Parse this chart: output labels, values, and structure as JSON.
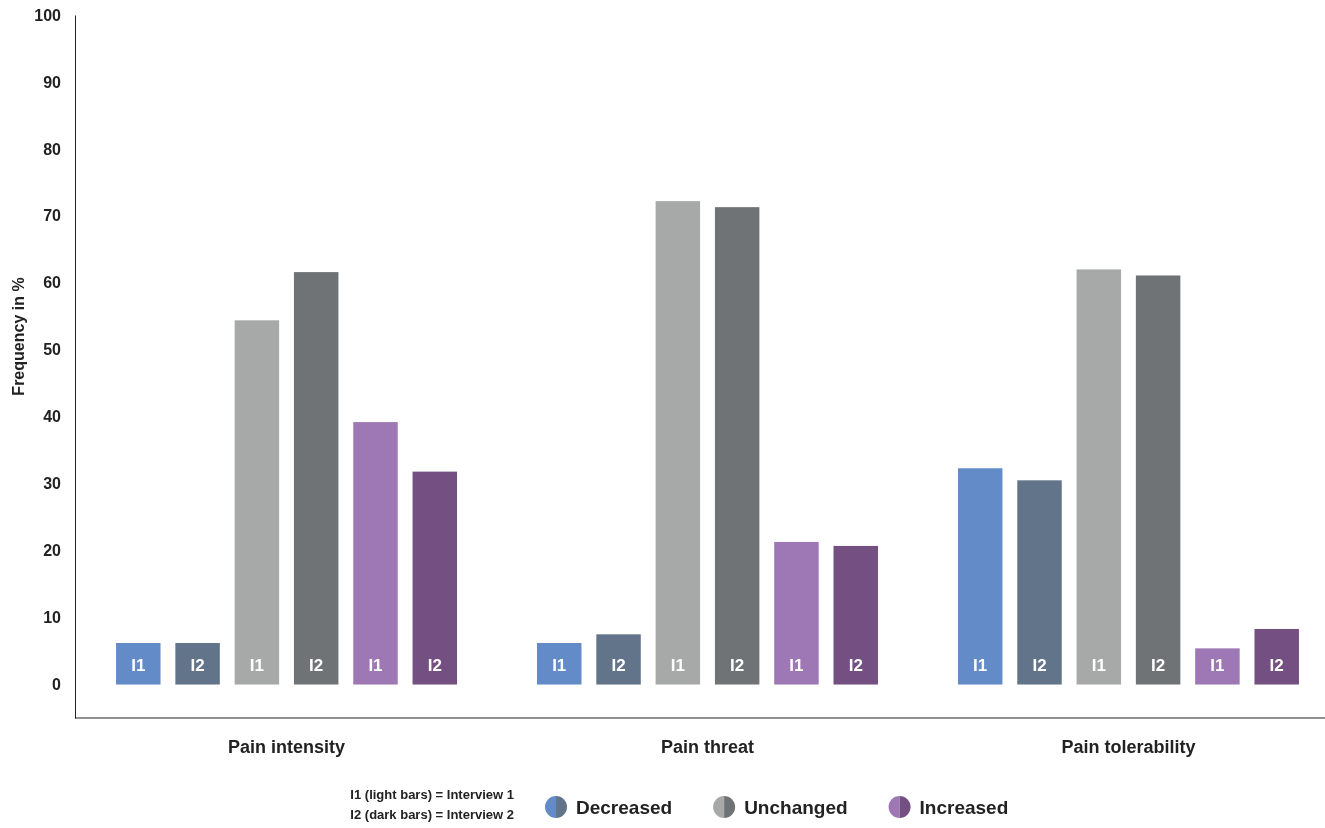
{
  "chart_data": {
    "type": "bar",
    "ylabel": "Frequency in %",
    "categories": [
      "Pain intensity",
      "Pain threat",
      "Pain tolerability"
    ],
    "series": [
      {
        "name": "Decreased",
        "color": "#628bc8",
        "values": [
          6.2,
          6.2,
          32.3
        ],
        "value_labels": [
          "I1",
          "I1",
          "I1"
        ]
      },
      {
        "color": "#627489",
        "values": [
          6.2,
          7.5,
          30.5
        ],
        "value_labels": [
          "I2",
          "I2",
          "I2"
        ]
      },
      {
        "name": "Unchanged",
        "color": "#a7a8a8",
        "values": [
          54.4,
          72.2,
          62.0
        ],
        "value_labels": [
          "I1",
          "I1",
          "I1"
        ]
      },
      {
        "color": "#707376",
        "values": [
          61.6,
          71.3,
          61.1
        ],
        "value_labels": [
          "I2",
          "I2",
          "I2"
        ]
      },
      {
        "name": "Increased",
        "color": "#9d78b4",
        "values": [
          39.2,
          21.3,
          5.4
        ],
        "value_labels": [
          "I1",
          "I1",
          "I1"
        ]
      },
      {
        "color": "#744f82",
        "values": [
          31.8,
          20.7,
          8.3
        ],
        "value_labels": [
          "I2",
          "I2",
          "I2"
        ]
      }
    ],
    "ylim": [
      -5,
      100
    ],
    "yticks": [
      0,
      10,
      20,
      30,
      40,
      50,
      60,
      70,
      80,
      90,
      100
    ],
    "grid": false,
    "legend": "bottom",
    "annotations": [
      "I1 (light bars) = Interview 1",
      "I2 (dark bars) = Interview 2"
    ]
  }
}
